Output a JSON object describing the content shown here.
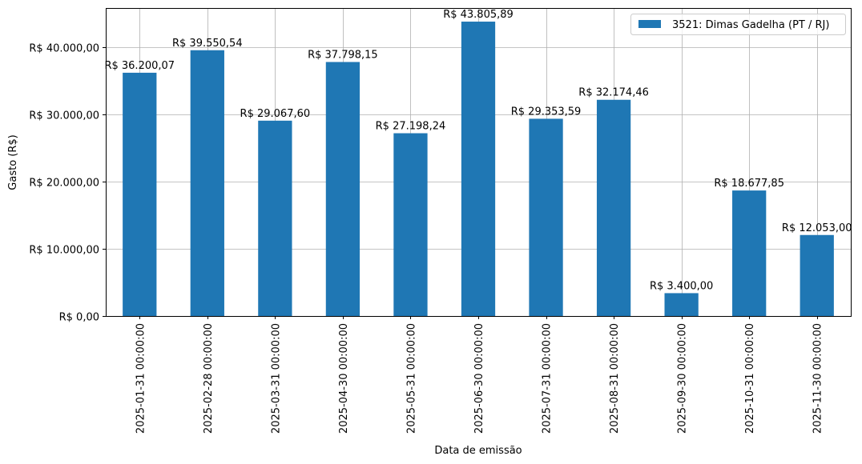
{
  "chart_data": {
    "type": "bar",
    "title": "",
    "xlabel": "Data de emissão",
    "ylabel": "Gasto (R$)",
    "ylim": [
      0,
      46000
    ],
    "grid": true,
    "legend_position": "upper right",
    "categories": [
      "2025-01-31 00:00:00",
      "2025-02-28 00:00:00",
      "2025-03-31 00:00:00",
      "2025-04-30 00:00:00",
      "2025-05-31 00:00:00",
      "2025-06-30 00:00:00",
      "2025-07-31 00:00:00",
      "2025-08-31 00:00:00",
      "2025-09-30 00:00:00",
      "2025-10-31 00:00:00",
      "2025-11-30 00:00:00"
    ],
    "series": [
      {
        "name": "3521: Dimas Gadelha (PT / RJ)",
        "color": "#1f77b4",
        "values": [
          36200.07,
          39550.54,
          29067.6,
          37798.15,
          27198.24,
          43805.89,
          29353.59,
          32174.46,
          3400.0,
          18677.85,
          12053.0
        ],
        "labels": [
          "R$ 36.200,07",
          "R$ 39.550,54",
          "R$ 29.067,60",
          "R$ 37.798,15",
          "R$ 27.198,24",
          "R$ 43.805,89",
          "R$ 29.353,59",
          "R$ 32.174,46",
          "R$ 3.400,00",
          "R$ 18.677,85",
          "R$ 12.053,00"
        ]
      }
    ],
    "yticks": [
      0,
      10000,
      20000,
      30000,
      40000
    ],
    "ytick_labels": [
      "R$ 0,00",
      "R$ 10.000,00",
      "R$ 20.000,00",
      "R$ 30.000,00",
      "R$ 40.000,00"
    ]
  }
}
